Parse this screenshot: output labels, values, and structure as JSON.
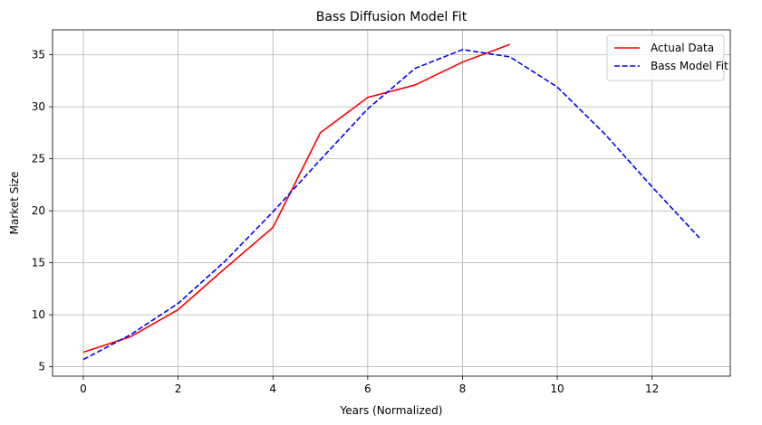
{
  "chart_data": {
    "type": "line",
    "title": "Bass Diffusion Model Fit",
    "xlabel": "Years (Normalized)",
    "ylabel": "Market Size",
    "xlim": [
      -0.65,
      13.65
    ],
    "ylim": [
      4.1,
      37.4
    ],
    "xticks": [
      0,
      2,
      4,
      6,
      8,
      10,
      12
    ],
    "yticks": [
      5,
      10,
      15,
      20,
      25,
      30,
      35
    ],
    "grid": true,
    "legend_position": "top-right",
    "series": [
      {
        "name": "Actual Data",
        "color": "#ff0000",
        "style": "solid",
        "x": [
          0,
          1,
          2,
          3,
          4,
          5,
          6,
          7,
          8,
          9
        ],
        "y": [
          6.4,
          7.9,
          10.5,
          14.5,
          18.4,
          27.5,
          30.9,
          32.1,
          34.3,
          36.0
        ]
      },
      {
        "name": "Bass Model Fit",
        "color": "#0000ff",
        "style": "dashed",
        "x": [
          0,
          1,
          2,
          3,
          4,
          5,
          6,
          7,
          8,
          9,
          10,
          11,
          12,
          13
        ],
        "y": [
          5.7,
          8.1,
          11.1,
          15.2,
          19.9,
          24.9,
          29.8,
          33.7,
          35.5,
          34.8,
          31.9,
          27.4,
          22.3,
          17.4
        ]
      }
    ]
  }
}
